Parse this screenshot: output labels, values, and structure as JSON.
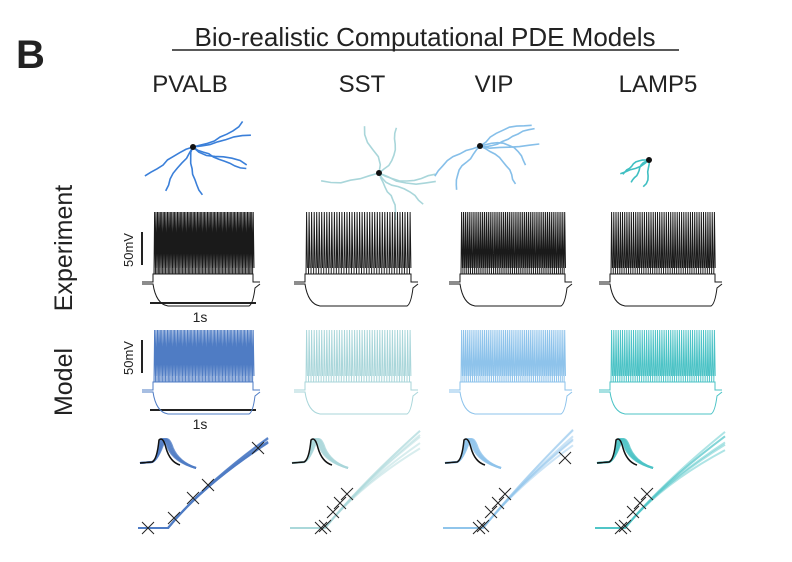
{
  "panel_label": "B",
  "title": "Bio-realistic Computational PDE Models",
  "row_labels": {
    "experiment": "Experiment",
    "model": "Model"
  },
  "scale_bars": {
    "voltage": "50mV",
    "time": "1s"
  },
  "columns": [
    {
      "name": "PVALB",
      "color": "#3a7fd9",
      "model_color": "#4f7cc4"
    },
    {
      "name": "SST",
      "color": "#a9d6da",
      "model_color": "#a9d6da"
    },
    {
      "name": "VIP",
      "color": "#86bfe9",
      "model_color": "#8ec3eb"
    },
    {
      "name": "LAMP5",
      "color": "#3fbfc2",
      "model_color": "#4cc3c6"
    }
  ],
  "experiment_color": "#1a1a1a"
}
